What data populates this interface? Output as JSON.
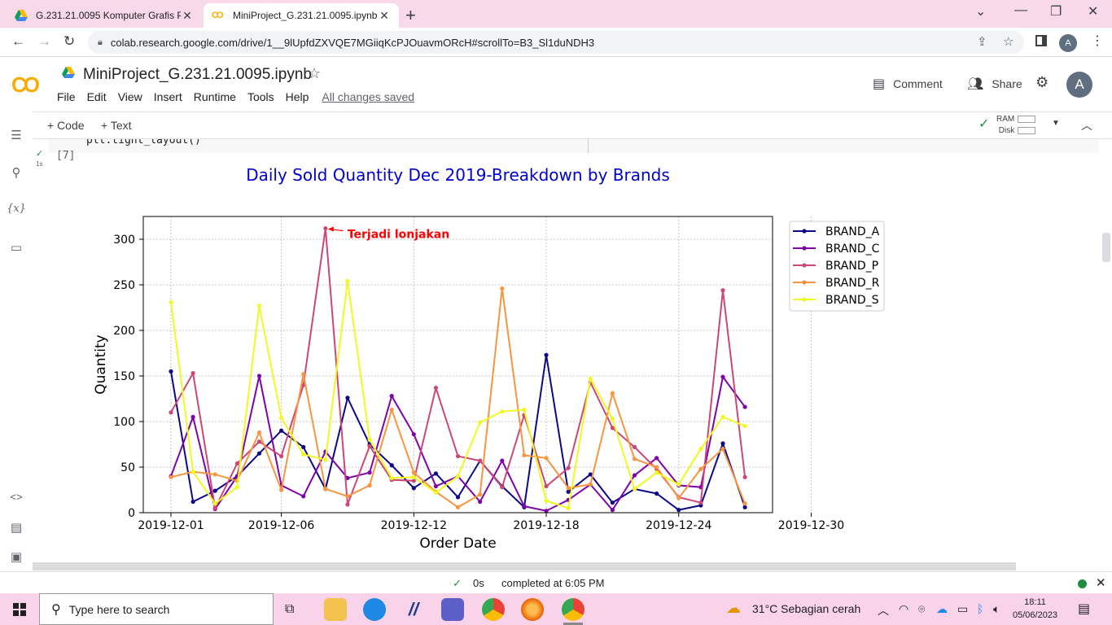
{
  "browser": {
    "tabs": [
      {
        "title": "G.231.21.0095 Komputer Grafis P",
        "active": false
      },
      {
        "title": "MiniProject_G.231.21.0095.ipynb",
        "active": true
      }
    ],
    "url": "colab.research.google.com/drive/1__9lUpfdZXVQE7MGiiqKcPJOuavmORcH#scrollTo=B3_Sl1duNDH3",
    "profile_initial": "A"
  },
  "colab": {
    "logo": "CO",
    "notebook_title": "MiniProject_G.231.21.0095.ipynb",
    "menu": [
      "File",
      "Edit",
      "View",
      "Insert",
      "Runtime",
      "Tools",
      "Help"
    ],
    "save_status": "All changes saved",
    "comment_label": "Comment",
    "share_label": "Share",
    "avatar_initial": "A",
    "toolbar": {
      "add_code": "+ Code",
      "add_text": "+ Text",
      "ram_label": "RAM",
      "disk_label": "Disk"
    },
    "cell": {
      "code_partial": "plt.tight_layout()",
      "exec_count": "[7]",
      "runtime": "1s"
    },
    "status": {
      "time": "0s",
      "message": "completed at 6:05 PM"
    }
  },
  "chart_data": {
    "type": "line",
    "title": "Daily Sold Quantity Dec 2019-Breakdown by Brands",
    "xlabel": "Order Date",
    "ylabel": "Quantity",
    "ylim": [
      0,
      325
    ],
    "yticks": [
      0,
      50,
      100,
      150,
      200,
      250,
      300
    ],
    "xticks": [
      "2019-12-01",
      "2019-12-06",
      "2019-12-12",
      "2019-12-18",
      "2019-12-24",
      "2019-12-30"
    ],
    "grid": true,
    "legend_position": "outside-right",
    "x": [
      "2019-12-01",
      "2019-12-02",
      "2019-12-03",
      "2019-12-04",
      "2019-12-05",
      "2019-12-06",
      "2019-12-07",
      "2019-12-08",
      "2019-12-09",
      "2019-12-10",
      "2019-12-11",
      "2019-12-12",
      "2019-12-13",
      "2019-12-14",
      "2019-12-15",
      "2019-12-16",
      "2019-12-17",
      "2019-12-18",
      "2019-12-19",
      "2019-12-20",
      "2019-12-21",
      "2019-12-22",
      "2019-12-23",
      "2019-12-24",
      "2019-12-25",
      "2019-12-26",
      "2019-12-27",
      "2019-12-28",
      "2019-12-29",
      "2019-12-30",
      "2019-12-31"
    ],
    "series": [
      {
        "name": "BRAND_A",
        "color": "#0d0887",
        "values": [
          155,
          12,
          24,
          40,
          65,
          90,
          72,
          26,
          126,
          75,
          52,
          27,
          43,
          17,
          57,
          29,
          6,
          173,
          23,
          42,
          11,
          26,
          21,
          3,
          8,
          76,
          6,
          null,
          null,
          null,
          null
        ]
      },
      {
        "name": "BRAND_C",
        "color": "#7e03a8",
        "values": [
          40,
          105,
          4,
          40,
          150,
          30,
          18,
          67,
          38,
          44,
          128,
          86,
          29,
          40,
          12,
          57,
          7,
          2,
          14,
          31,
          3,
          41,
          60,
          30,
          28,
          149,
          116,
          null,
          null,
          null,
          null
        ]
      },
      {
        "name": "BRAND_P",
        "color": "#cc4778",
        "values": [
          110,
          153,
          5,
          54,
          78,
          62,
          140,
          312,
          9,
          73,
          36,
          35,
          137,
          62,
          57,
          28,
          107,
          29,
          49,
          143,
          93,
          72,
          48,
          17,
          11,
          244,
          39,
          null,
          null,
          null,
          null
        ]
      },
      {
        "name": "BRAND_R",
        "color": "#f89540",
        "values": [
          39,
          45,
          42,
          35,
          88,
          25,
          152,
          26,
          18,
          30,
          113,
          44,
          23,
          6,
          20,
          246,
          63,
          60,
          27,
          31,
          131,
          59,
          50,
          16,
          48,
          70,
          10,
          null,
          null,
          null,
          null
        ]
      },
      {
        "name": "BRAND_S",
        "color": "#f0f921",
        "values": [
          231,
          45,
          10,
          28,
          227,
          104,
          64,
          58,
          254,
          80,
          38,
          39,
          22,
          40,
          99,
          111,
          113,
          13,
          5,
          147,
          103,
          26,
          44,
          31,
          70,
          105,
          95,
          null,
          null,
          null,
          null
        ]
      }
    ],
    "annotation": {
      "text": "Terjadi lonjakan",
      "x": "2019-12-08",
      "y": 312,
      "color": "#ff0000"
    }
  },
  "taskbar": {
    "search_placeholder": "Type here to search",
    "weather": "31°C  Sebagian cerah",
    "time": "18:11",
    "date": "05/06/2023"
  }
}
